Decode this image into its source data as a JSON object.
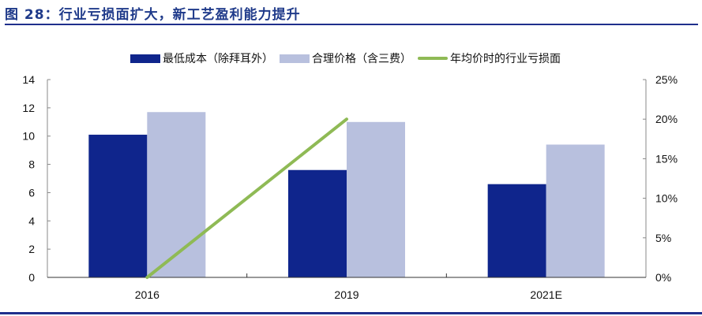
{
  "title": "图 28：行业亏损面扩大，新工艺盈利能力提升",
  "colors": {
    "title": "#1f3a8a",
    "rule": "#1f2f8c",
    "series_min_cost": "#0f258c",
    "series_price": "#b8c0de",
    "series_loss": "#8fba55"
  },
  "legend": [
    {
      "label": "最低成本（除拜耳外）",
      "type": "bar",
      "color": "#0f258c"
    },
    {
      "label": "合理价格（含三费）",
      "type": "bar",
      "color": "#b8c0de"
    },
    {
      "label": "年均价时的行业亏损面",
      "type": "line",
      "color": "#8fba55"
    }
  ],
  "chart_data": {
    "type": "bar",
    "title": "图 28：行业亏损面扩大，新工艺盈利能力提升",
    "categories": [
      "2016",
      "2019",
      "2021E"
    ],
    "series": [
      {
        "name": "最低成本（除拜耳外）",
        "type": "bar",
        "axis": "left",
        "values": [
          10.1,
          7.6,
          6.6
        ]
      },
      {
        "name": "合理价格（含三费）",
        "type": "bar",
        "axis": "left",
        "values": [
          11.7,
          11.0,
          9.4
        ]
      },
      {
        "name": "年均价时的行业亏损面",
        "type": "line",
        "axis": "right",
        "values": [
          0.0,
          0.2,
          null
        ]
      }
    ],
    "left_axis": {
      "ylim": [
        0,
        14
      ],
      "ticks": [
        "0",
        "2",
        "4",
        "6",
        "8",
        "10",
        "12",
        "14"
      ]
    },
    "right_axis": {
      "ylim": [
        0,
        0.25
      ],
      "ticks": [
        "0%",
        "5%",
        "10%",
        "15%",
        "20%",
        "25%"
      ]
    },
    "xlabel": "",
    "ylabel": "",
    "grid": false,
    "legend_position": "top"
  }
}
